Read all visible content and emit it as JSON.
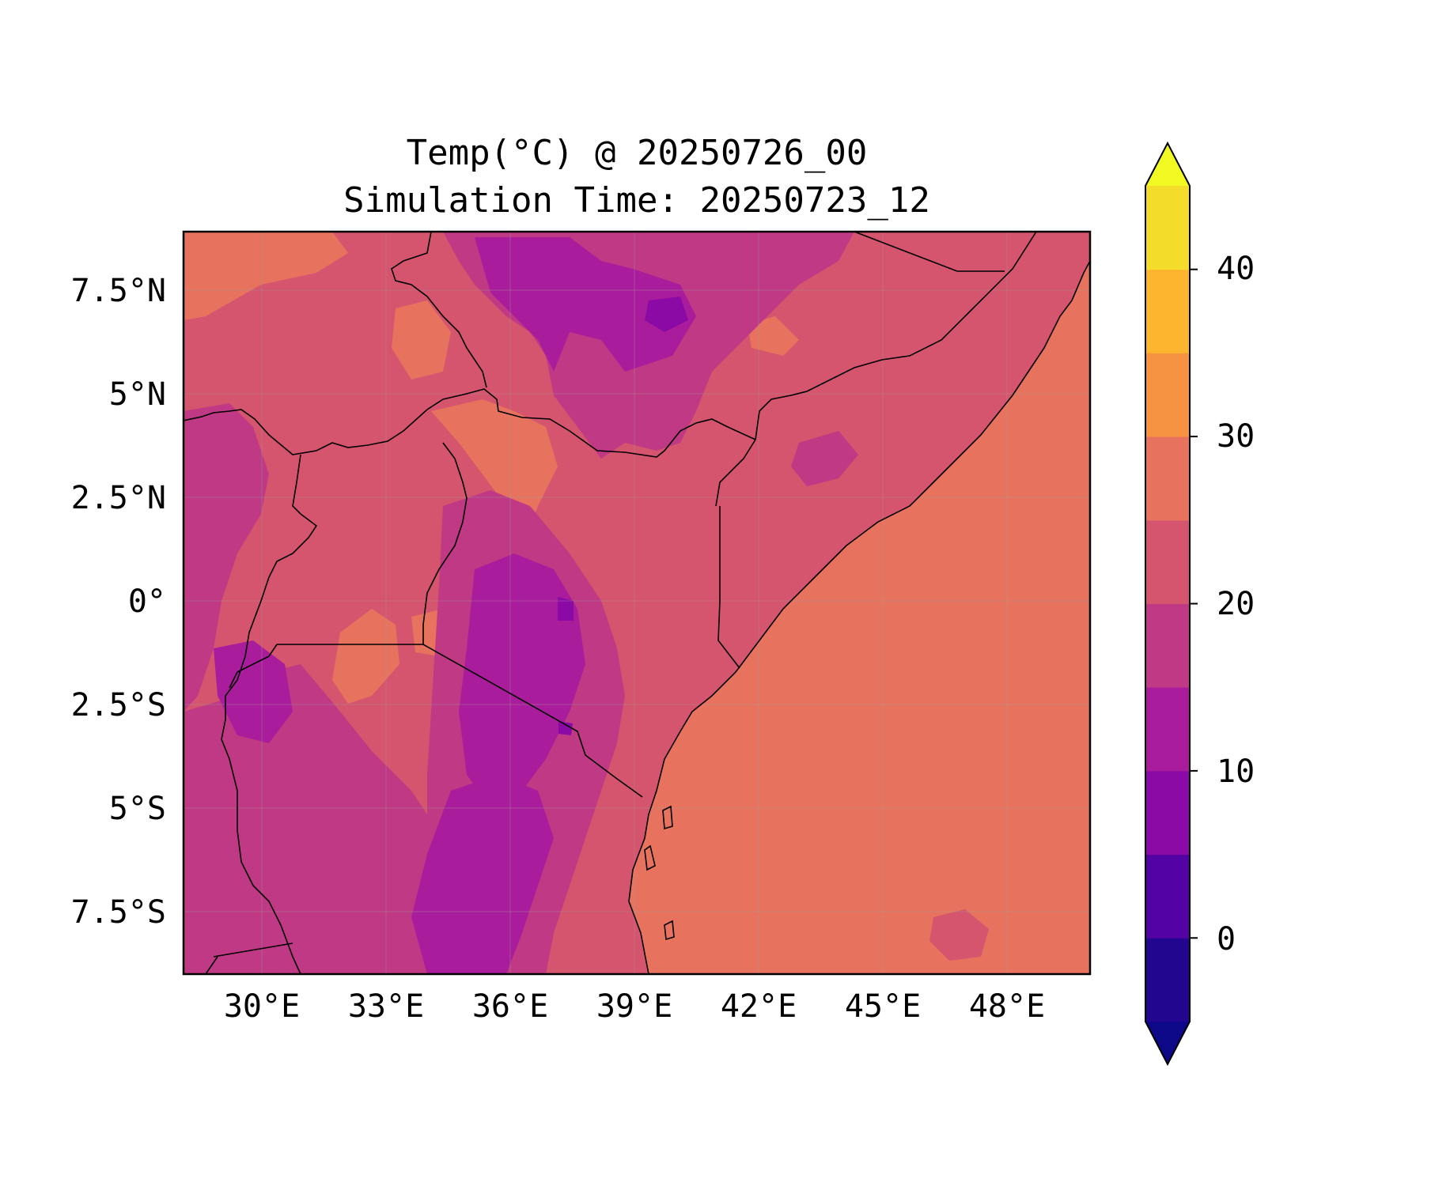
{
  "title_line1": "Temp(°C) @ 20250726_00",
  "title_line2": "Simulation Time: 20250723_12",
  "map": {
    "lon_range": [
      27.5,
      49.5
    ],
    "lat_range": [
      -9.0,
      9.0
    ],
    "lon_ticks": [
      "30°E",
      "33°E",
      "36°E",
      "39°E",
      "42°E",
      "45°E",
      "48°E"
    ],
    "lat_ticks": [
      "7.5°N",
      "5°N",
      "2.5°N",
      "0°",
      "2.5°S",
      "5°S",
      "7.5°S"
    ],
    "ocean_value_band": "25–30",
    "land_dominant_band": "20–25",
    "gridlines": true
  },
  "colorbar": {
    "ticks": [
      "0",
      "10",
      "20",
      "30",
      "40"
    ],
    "levels": [
      -5,
      0,
      5,
      10,
      15,
      20,
      25,
      30,
      35,
      40,
      45
    ],
    "colors": [
      "#0d0887",
      "#220690",
      "#5302a3",
      "#8b0aa5",
      "#a91d9c",
      "#bf3984",
      "#d5546e",
      "#e7735e",
      "#f59342",
      "#fdb42f",
      "#f3dd2a",
      "#f0f921"
    ],
    "extend": "both"
  }
}
